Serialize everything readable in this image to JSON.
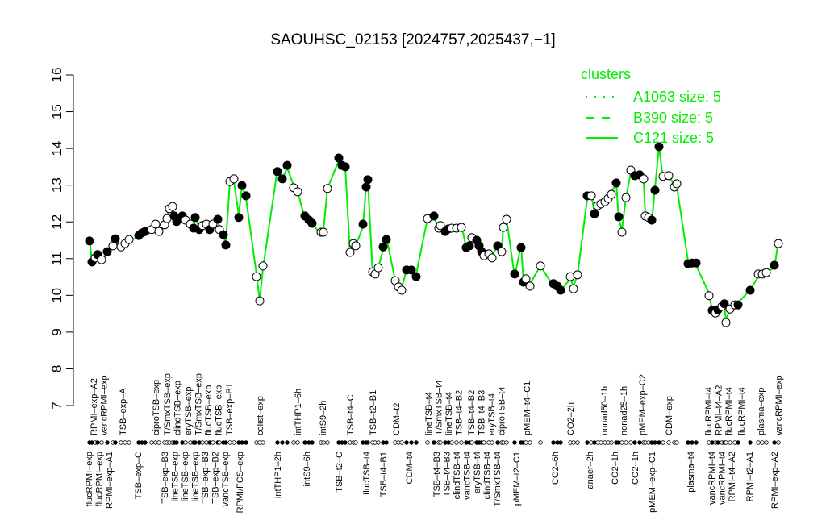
{
  "chart_data": {
    "type": "line",
    "title": "SAOUHSC_02153 [2024757,2025437,−1]",
    "xlabel": "",
    "ylabel": "",
    "ylim": [
      7,
      16
    ],
    "yticks": [
      "7",
      "8",
      "9",
      "10",
      "11",
      "12",
      "13",
      "14",
      "15",
      "16"
    ],
    "grid": false,
    "legend": {
      "position": "top-right",
      "title": "clusters",
      "entries": [
        {
          "name": "A1063 size: 5",
          "style": "dotted"
        },
        {
          "name": "B390 size: 5",
          "style": "dashed"
        },
        {
          "name": "C121 size: 5",
          "style": "solid"
        }
      ]
    },
    "colors": {
      "line": "#00ee00",
      "points": "#000000"
    },
    "points": [
      [
        11.48,
        1
      ],
      [
        10.91,
        1
      ],
      [
        11.02,
        0
      ],
      [
        11.11,
        1
      ],
      [
        10.97,
        0
      ],
      [
        11.19,
        1
      ],
      [
        11.35,
        0
      ],
      [
        11.54,
        1
      ],
      [
        11.32,
        0
      ],
      [
        11.41,
        0
      ],
      [
        11.52,
        0
      ],
      [
        11.63,
        1
      ],
      [
        11.7,
        1
      ],
      [
        11.74,
        1
      ],
      [
        11.79,
        0
      ],
      [
        11.94,
        0
      ],
      [
        11.74,
        0
      ],
      [
        11.92,
        0
      ],
      [
        12.09,
        0
      ],
      [
        12.36,
        0
      ],
      [
        12.42,
        0
      ],
      [
        12.16,
        1
      ],
      [
        12.01,
        1
      ],
      [
        12.16,
        1
      ],
      [
        12.05,
        0
      ],
      [
        11.94,
        0
      ],
      [
        11.83,
        1
      ],
      [
        12.12,
        1
      ],
      [
        11.79,
        1
      ],
      [
        11.9,
        0
      ],
      [
        11.94,
        0
      ],
      [
        11.79,
        1
      ],
      [
        11.94,
        0
      ],
      [
        12.07,
        1
      ],
      [
        11.79,
        0
      ],
      [
        11.65,
        1
      ],
      [
        11.37,
        1
      ],
      [
        13.1,
        0
      ],
      [
        13.17,
        0
      ],
      [
        12.12,
        1
      ],
      [
        12.99,
        1
      ],
      [
        12.71,
        1
      ],
      [
        10.51,
        0
      ],
      [
        9.85,
        0
      ],
      [
        10.8,
        0
      ],
      [
        13.37,
        1
      ],
      [
        13.17,
        1
      ],
      [
        13.54,
        1
      ],
      [
        12.93,
        0
      ],
      [
        12.82,
        0
      ],
      [
        12.16,
        1
      ],
      [
        12.05,
        1
      ],
      [
        11.96,
        1
      ],
      [
        11.72,
        0
      ],
      [
        11.72,
        0
      ],
      [
        12.91,
        0
      ],
      [
        13.74,
        1
      ],
      [
        13.54,
        1
      ],
      [
        13.5,
        1
      ],
      [
        11.17,
        0
      ],
      [
        11.41,
        0
      ],
      [
        11.35,
        0
      ],
      [
        11.94,
        1
      ],
      [
        12.95,
        1
      ],
      [
        13.15,
        1
      ],
      [
        10.64,
        0
      ],
      [
        10.58,
        0
      ],
      [
        10.75,
        0
      ],
      [
        11.32,
        1
      ],
      [
        11.52,
        1
      ],
      [
        10.4,
        0
      ],
      [
        10.23,
        0
      ],
      [
        10.14,
        0
      ],
      [
        10.69,
        1
      ],
      [
        10.69,
        1
      ],
      [
        10.51,
        1
      ],
      [
        12.09,
        0
      ],
      [
        12.16,
        1
      ],
      [
        11.83,
        0
      ],
      [
        11.9,
        0
      ],
      [
        11.74,
        1
      ],
      [
        11.81,
        1
      ],
      [
        11.83,
        0
      ],
      [
        11.83,
        0
      ],
      [
        11.85,
        0
      ],
      [
        11.3,
        1
      ],
      [
        11.35,
        1
      ],
      [
        11.57,
        0
      ],
      [
        11.5,
        1
      ],
      [
        11.35,
        1
      ],
      [
        11.19,
        1
      ],
      [
        11.08,
        0
      ],
      [
        11.13,
        0
      ],
      [
        11.02,
        0
      ],
      [
        11.35,
        1
      ],
      [
        11.19,
        0
      ],
      [
        11.85,
        0
      ],
      [
        12.07,
        0
      ],
      [
        10.58,
        1
      ],
      [
        11.3,
        1
      ],
      [
        10.36,
        1
      ],
      [
        10.45,
        0
      ],
      [
        10.25,
        0
      ],
      [
        10.8,
        0
      ],
      [
        10.32,
        1
      ],
      [
        10.25,
        1
      ],
      [
        10.14,
        1
      ],
      [
        10.51,
        0
      ],
      [
        10.18,
        0
      ],
      [
        10.56,
        0
      ],
      [
        12.71,
        1
      ],
      [
        12.71,
        0
      ],
      [
        12.22,
        1
      ],
      [
        12.44,
        0
      ],
      [
        12.49,
        0
      ],
      [
        12.55,
        0
      ],
      [
        12.64,
        0
      ],
      [
        12.75,
        0
      ],
      [
        13.06,
        1
      ],
      [
        12.14,
        1
      ],
      [
        11.72,
        0
      ],
      [
        12.66,
        0
      ],
      [
        13.41,
        0
      ],
      [
        13.26,
        1
      ],
      [
        13.28,
        1
      ],
      [
        13.17,
        0
      ],
      [
        12.16,
        0
      ],
      [
        12.12,
        0
      ],
      [
        12.05,
        1
      ],
      [
        12.86,
        1
      ],
      [
        14.05,
        1
      ],
      [
        13.24,
        0
      ],
      [
        13.26,
        0
      ],
      [
        12.95,
        0
      ],
      [
        13.04,
        0
      ],
      [
        10.86,
        1
      ],
      [
        10.88,
        1
      ],
      [
        10.88,
        1
      ],
      [
        9.99,
        0
      ],
      [
        9.59,
        1
      ],
      [
        9.52,
        0
      ],
      [
        9.61,
        1
      ],
      [
        9.7,
        0
      ],
      [
        9.77,
        1
      ],
      [
        9.26,
        0
      ],
      [
        9.63,
        0
      ],
      [
        9.74,
        0
      ],
      [
        9.74,
        1
      ],
      [
        10.14,
        1
      ],
      [
        10.58,
        0
      ],
      [
        10.58,
        0
      ],
      [
        10.62,
        0
      ],
      [
        10.82,
        1
      ],
      [
        11.41,
        0
      ]
    ],
    "top_labels": [
      "RPMI–exp–A2",
      "vancRPMI–exp",
      "TSB–exp–A",
      "ciproTSB–exp",
      "T/SmxTSB–exp",
      "clindTSB–exp",
      "eryTSB–exp",
      "T/SmxTSB–exp",
      "flucTSB–exp",
      "flucTSB–exp",
      "TSB–exp–B1",
      "colist–exp",
      "intTHP1–6h",
      "intS9–2h",
      "TSB–t4–C",
      "TSB–t2–B1",
      "CDM–t2",
      "lineTSB–t4",
      "T/SmxTSB–t4",
      "lineTSB–t4",
      "TSB–t4–B2",
      "TSB–t4–B2",
      "TSB–t4–B3",
      "eryTSB–t4",
      "ciproTSB–t4",
      "pMEM–t4–C1",
      "CO2–2h",
      "nonad50–1h",
      "nonad25–1h",
      "pMEM–exp–C2",
      "CDM–exp",
      "flucRPMI–t4",
      "RPMI–t4–A2",
      "flucRPMI–t4",
      "flucRPMI–t4",
      "plasma–exp",
      "vancRPMI–exp"
    ],
    "bottom_labels": [
      "flucRPMI–exp",
      "flucRPMI–exp",
      "RPMI–exp–A1",
      "TSB–exp–C",
      "TSB–exp–B3",
      "lineTSB–exp",
      "lineTSB–exp",
      "lineTSB–exp",
      "TSB–exp–B3",
      "TSB–exp–B2",
      "vancTSB–exp",
      "RPMI/FCS–exp",
      "intTHP1–2h",
      "intS9–6h",
      "TSB–t2–C",
      "flucTSB–t4",
      "TSB–t4–B1",
      "CDM–t4",
      "TSB–t4–B3",
      "TSB–t4–B3",
      "clindTSB–t4",
      "vancTSB–t4",
      "eryTSB–t4",
      "clindTSB–t4",
      "T/SmxTSB–t4",
      "pMEM–t2–C1",
      "CO2–6h",
      "anaer–2h",
      "CO2–1h",
      "CO2–1h",
      "pMEM–exp–C1",
      "plasma–t4",
      "vancRPMI–t4",
      "vancRPMI–t4",
      "RPMI–t4–A2",
      "RPMI–t2–A1",
      "RPMI–exp–A2"
    ]
  }
}
